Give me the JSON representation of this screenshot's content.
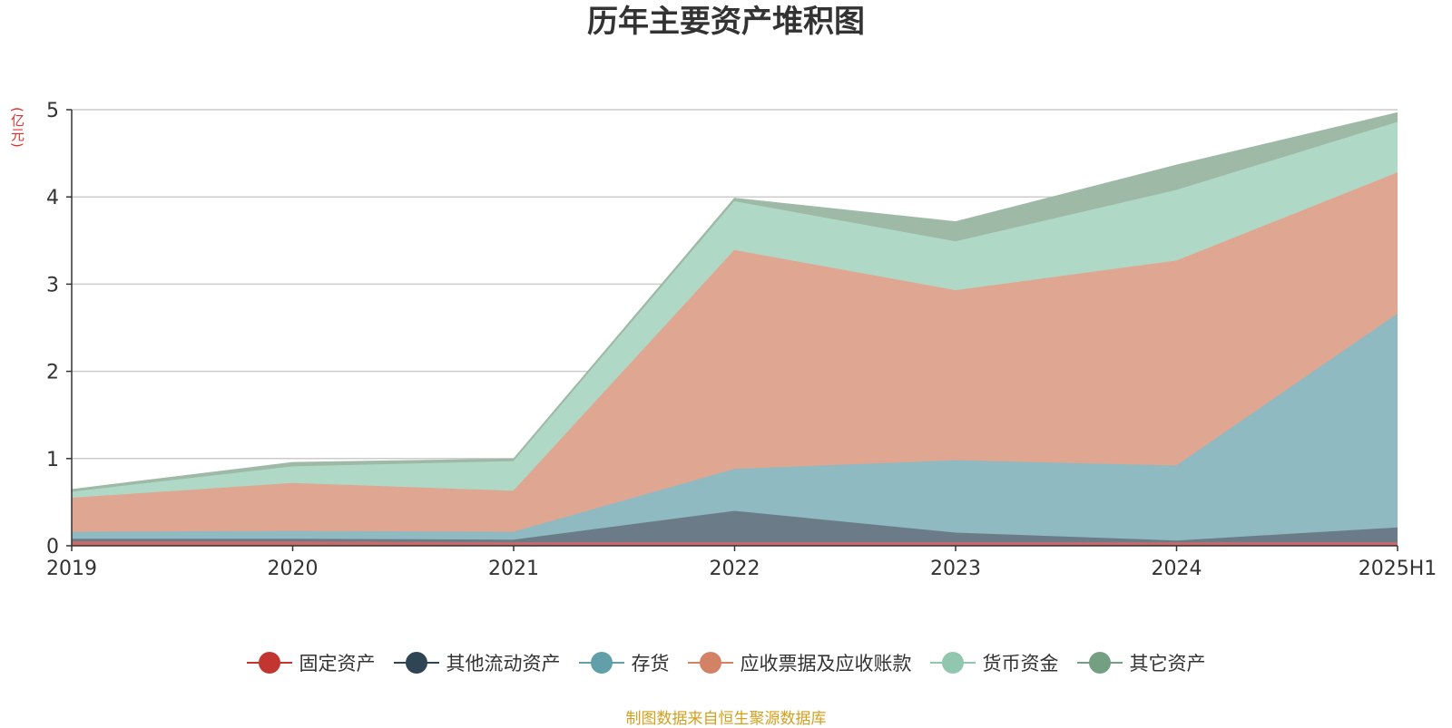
{
  "unit_label": "(亿元)",
  "source_note": "制图数据来自恒生聚源数据库",
  "chart_data": {
    "type": "area",
    "stacked": true,
    "title": "历年主要资产堆积图",
    "ylabel": "(亿元)",
    "ylim": [
      0,
      5
    ],
    "yticks": [
      0,
      1,
      2,
      3,
      4,
      5
    ],
    "grid": true,
    "legend_position": "bottom",
    "categories": [
      "2019",
      "2020",
      "2021",
      "2022",
      "2023",
      "2024",
      "2025H1"
    ],
    "series": [
      {
        "name": "固定资产",
        "color": "#c23531",
        "fill": "#c96a6a",
        "values": [
          0.04,
          0.04,
          0.03,
          0.03,
          0.03,
          0.03,
          0.03
        ]
      },
      {
        "name": "其他流动资产",
        "color": "#2f4554",
        "fill": "#6b7c88",
        "values": [
          0.03,
          0.03,
          0.03,
          0.36,
          0.11,
          0.02,
          0.17
        ]
      },
      {
        "name": "存货",
        "color": "#61a0a8",
        "fill": "#8fbac1",
        "values": [
          0.08,
          0.09,
          0.09,
          0.48,
          0.83,
          0.86,
          2.45
        ]
      },
      {
        "name": "应收票据及应收账款",
        "color": "#d48265",
        "fill": "#dfa691",
        "values": [
          0.39,
          0.55,
          0.47,
          2.51,
          1.95,
          2.35,
          1.62
        ]
      },
      {
        "name": "货币资金",
        "color": "#91c7ae",
        "fill": "#b0d8c6",
        "values": [
          0.07,
          0.19,
          0.34,
          0.56,
          0.56,
          0.81,
          0.58
        ]
      },
      {
        "name": "其它资产",
        "color": "#749f83",
        "fill": "#9eb9a6",
        "values": [
          0.03,
          0.05,
          0.03,
          0.04,
          0.23,
          0.29,
          0.11
        ]
      }
    ]
  }
}
